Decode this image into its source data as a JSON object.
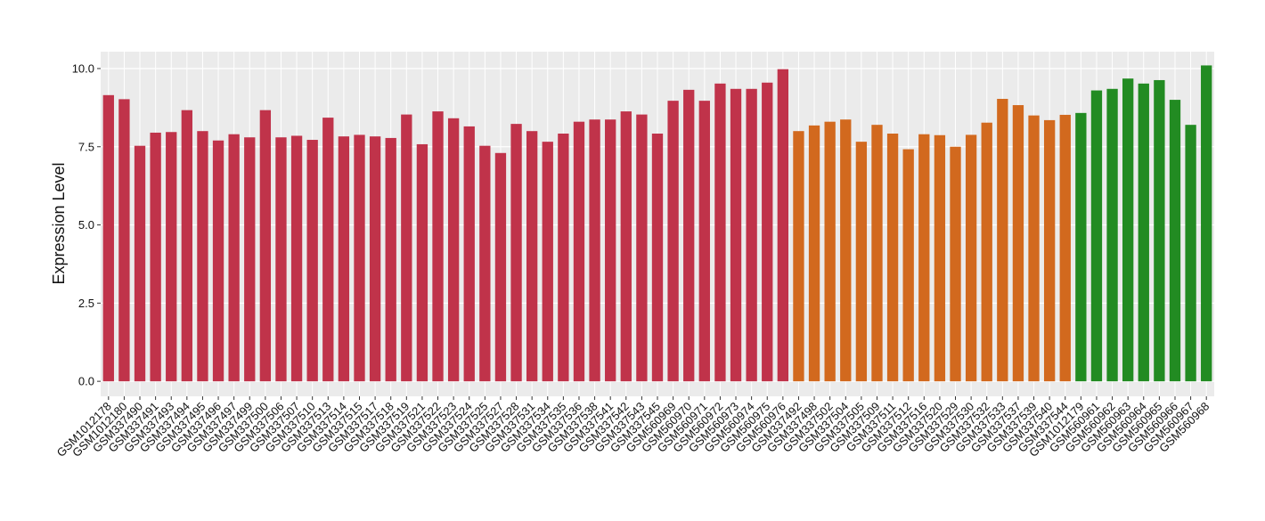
{
  "chart_data": {
    "type": "bar",
    "ylabel": "Expression Level",
    "categories": [
      "GSM1012178",
      "GSM1012180",
      "GSM337490",
      "GSM337491",
      "GSM337493",
      "GSM337494",
      "GSM337495",
      "GSM337496",
      "GSM337497",
      "GSM337499",
      "GSM337500",
      "GSM337506",
      "GSM337507",
      "GSM337510",
      "GSM337513",
      "GSM337514",
      "GSM337515",
      "GSM337517",
      "GSM337518",
      "GSM337519",
      "GSM337521",
      "GSM337522",
      "GSM337523",
      "GSM337524",
      "GSM337525",
      "GSM337527",
      "GSM337528",
      "GSM337531",
      "GSM337534",
      "GSM337535",
      "GSM337536",
      "GSM337538",
      "GSM337541",
      "GSM337542",
      "GSM337543",
      "GSM337545",
      "GSM560969",
      "GSM560970",
      "GSM560971",
      "GSM560972",
      "GSM560973",
      "GSM560974",
      "GSM560975",
      "GSM560976",
      "GSM337492",
      "GSM337498",
      "GSM337502",
      "GSM337504",
      "GSM337505",
      "GSM337509",
      "GSM337511",
      "GSM337512",
      "GSM337516",
      "GSM337520",
      "GSM337529",
      "GSM337530",
      "GSM337532",
      "GSM337533",
      "GSM337537",
      "GSM337539",
      "GSM337540",
      "GSM337544",
      "GSM1012179",
      "GSM560961",
      "GSM560962",
      "GSM560963",
      "GSM560964",
      "GSM560965",
      "GSM560966",
      "GSM560967",
      "GSM560968"
    ],
    "values": [
      9.15,
      9.02,
      7.53,
      7.95,
      7.97,
      8.67,
      8.0,
      7.7,
      7.9,
      7.8,
      8.67,
      7.8,
      7.85,
      7.72,
      8.43,
      7.83,
      7.88,
      7.83,
      7.78,
      8.53,
      7.58,
      8.63,
      8.41,
      8.15,
      7.53,
      7.3,
      8.23,
      8.0,
      7.66,
      7.92,
      8.3,
      8.37,
      8.37,
      8.63,
      8.53,
      7.92,
      8.97,
      9.32,
      8.97,
      9.52,
      9.35,
      9.35,
      9.55,
      9.98,
      8.0,
      8.18,
      8.3,
      8.37,
      7.66,
      8.2,
      7.92,
      7.42,
      7.9,
      7.87,
      7.5,
      7.88,
      8.27,
      9.03,
      8.83,
      8.5,
      8.35,
      8.52,
      8.58,
      9.3,
      9.35,
      9.68,
      9.52,
      9.63,
      9.0,
      8.2,
      10.1
    ],
    "colors": [
      "#c0334a",
      "#c0334a",
      "#c0334a",
      "#c0334a",
      "#c0334a",
      "#c0334a",
      "#c0334a",
      "#c0334a",
      "#c0334a",
      "#c0334a",
      "#c0334a",
      "#c0334a",
      "#c0334a",
      "#c0334a",
      "#c0334a",
      "#c0334a",
      "#c0334a",
      "#c0334a",
      "#c0334a",
      "#c0334a",
      "#c0334a",
      "#c0334a",
      "#c0334a",
      "#c0334a",
      "#c0334a",
      "#c0334a",
      "#c0334a",
      "#c0334a",
      "#c0334a",
      "#c0334a",
      "#c0334a",
      "#c0334a",
      "#c0334a",
      "#c0334a",
      "#c0334a",
      "#c0334a",
      "#c0334a",
      "#c0334a",
      "#c0334a",
      "#c0334a",
      "#c0334a",
      "#c0334a",
      "#c0334a",
      "#c0334a",
      "#d2691e",
      "#d2691e",
      "#d2691e",
      "#d2691e",
      "#d2691e",
      "#d2691e",
      "#d2691e",
      "#d2691e",
      "#d2691e",
      "#d2691e",
      "#d2691e",
      "#d2691e",
      "#d2691e",
      "#d2691e",
      "#d2691e",
      "#d2691e",
      "#d2691e",
      "#d2691e",
      "#228b22",
      "#228b22",
      "#228b22",
      "#228b22",
      "#228b22",
      "#228b22",
      "#228b22",
      "#228b22",
      "#228b22"
    ],
    "ylim": [
      -0.48,
      10.54
    ],
    "yticks": [
      {
        "value": 0,
        "label": "0.0"
      },
      {
        "value": 2.5,
        "label": "2.5"
      },
      {
        "value": 5,
        "label": "5.0"
      },
      {
        "value": 7.5,
        "label": "7.5"
      },
      {
        "value": 10,
        "label": "10.0"
      }
    ],
    "grid": true
  }
}
